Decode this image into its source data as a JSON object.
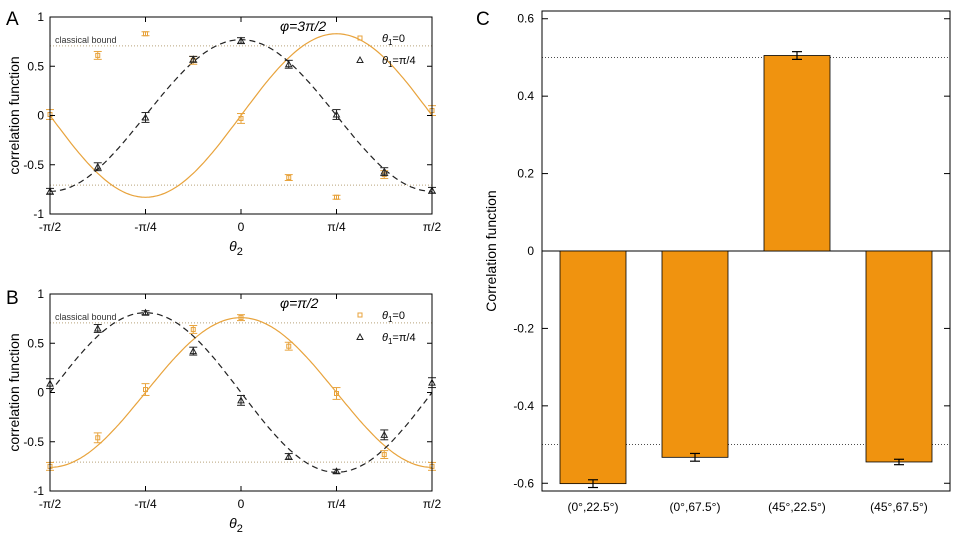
{
  "chart_data": [
    {
      "panel_letter": "A",
      "type": "line",
      "xlabel": "θ",
      "xlabel_sub": "2",
      "ylabel": "correlation function",
      "annotation": "φ=3π/2",
      "bound_label": "classical bound",
      "bound": 0.707,
      "xlim": [
        -1.5708,
        1.5708
      ],
      "ylim": [
        -1,
        1
      ],
      "x_ticks": [
        -1.5708,
        -0.7854,
        0,
        0.7854,
        1.5708
      ],
      "x_tick_labels": [
        "-π/2",
        "-π/4",
        "0",
        "π/4",
        "π/2"
      ],
      "y_ticks": [
        -1,
        -0.5,
        0,
        0.5,
        1
      ],
      "y_tick_labels": [
        "-1",
        "-0.5",
        "0",
        "0.5",
        "1"
      ],
      "series": [
        {
          "name": "θ",
          "name_sub": "1",
          "name_suffix": "=0",
          "color": "#E8A33C",
          "marker": "square",
          "fit": {
            "amplitude": 0.83,
            "phase": 0.7854
          },
          "x": [
            -1.5708,
            -1.1781,
            -0.7854,
            -0.3927,
            0,
            0.3927,
            0.7854,
            1.1781,
            1.5708
          ],
          "y": [
            0.01,
            0.61,
            0.83,
            0.56,
            -0.03,
            -0.63,
            -0.83,
            -0.6,
            0.05
          ],
          "err": [
            0.05,
            0.04,
            0.02,
            0.04,
            0.05,
            0.03,
            0.02,
            0.04,
            0.05
          ]
        },
        {
          "name": "θ",
          "name_sub": "1",
          "name_suffix": "=π/4",
          "color": "#222222",
          "marker": "triangle",
          "fit": {
            "amplitude": 0.77,
            "phase": 0
          },
          "x": [
            -1.5708,
            -1.1781,
            -0.7854,
            -0.3927,
            0,
            0.3927,
            0.7854,
            1.1781,
            1.5708
          ],
          "y": [
            -0.77,
            -0.52,
            -0.02,
            0.57,
            0.76,
            0.52,
            0.01,
            -0.57,
            -0.76
          ],
          "err": [
            0.03,
            0.04,
            0.05,
            0.03,
            0.03,
            0.04,
            0.05,
            0.04,
            0.03
          ]
        }
      ]
    },
    {
      "panel_letter": "B",
      "type": "line",
      "xlabel": "θ",
      "xlabel_sub": "2",
      "ylabel": "correlation function",
      "annotation": "φ=π/2",
      "bound_label": "classical bound",
      "bound": 0.707,
      "xlim": [
        -1.5708,
        1.5708
      ],
      "ylim": [
        -1,
        1
      ],
      "x_ticks": [
        -1.5708,
        -0.7854,
        0,
        0.7854,
        1.5708
      ],
      "x_tick_labels": [
        "-π/2",
        "-π/4",
        "0",
        "π/4",
        "π/2"
      ],
      "y_ticks": [
        -1,
        -0.5,
        0,
        0.5,
        1
      ],
      "y_tick_labels": [
        "-1",
        "-0.5",
        "0",
        "0.5",
        "1"
      ],
      "series": [
        {
          "name": "θ",
          "name_sub": "1",
          "name_suffix": "=0",
          "color": "#E8A33C",
          "marker": "square",
          "fit": {
            "amplitude": 0.76,
            "phase": 0
          },
          "x": [
            -1.5708,
            -1.1781,
            -0.7854,
            -0.3927,
            0,
            0.3927,
            0.7854,
            1.1781,
            1.5708
          ],
          "y": [
            -0.75,
            -0.46,
            0.03,
            0.64,
            0.76,
            0.47,
            -0.01,
            -0.63,
            -0.75
          ],
          "err": [
            0.04,
            0.05,
            0.06,
            0.04,
            0.03,
            0.04,
            0.06,
            0.04,
            0.04
          ]
        },
        {
          "name": "θ",
          "name_sub": "1",
          "name_suffix": "=π/4",
          "color": "#222222",
          "marker": "triangle",
          "fit": {
            "amplitude": 0.81,
            "phase": -0.7854
          },
          "x": [
            -1.5708,
            -1.1781,
            -0.7854,
            -0.3927,
            0,
            0.3927,
            0.7854,
            1.1781,
            1.5708
          ],
          "y": [
            0.09,
            0.65,
            0.81,
            0.42,
            -0.08,
            -0.65,
            -0.8,
            -0.43,
            0.1
          ],
          "err": [
            0.05,
            0.04,
            0.02,
            0.04,
            0.05,
            0.03,
            0.02,
            0.05,
            0.05
          ]
        }
      ]
    },
    {
      "panel_letter": "C",
      "type": "bar",
      "ylabel": "Correlation function",
      "categories": [
        "(0°,22.5°)",
        "(0°,67.5°)",
        "(45°,22.5°)",
        "(45°,67.5°)"
      ],
      "values": [
        -0.601,
        -0.533,
        0.505,
        -0.545
      ],
      "errors": [
        0.01,
        0.01,
        0.01,
        0.007
      ],
      "bar_color": "#F0930F",
      "bound": 0.5,
      "ylim": [
        -0.62,
        0.62
      ],
      "y_ticks": [
        -0.6,
        -0.4,
        -0.2,
        0,
        0.2,
        0.4,
        0.6
      ],
      "y_tick_labels": [
        "-0.6",
        "-0.4",
        "-0.2",
        "0",
        "0.2",
        "0.4",
        "0.6"
      ]
    }
  ]
}
